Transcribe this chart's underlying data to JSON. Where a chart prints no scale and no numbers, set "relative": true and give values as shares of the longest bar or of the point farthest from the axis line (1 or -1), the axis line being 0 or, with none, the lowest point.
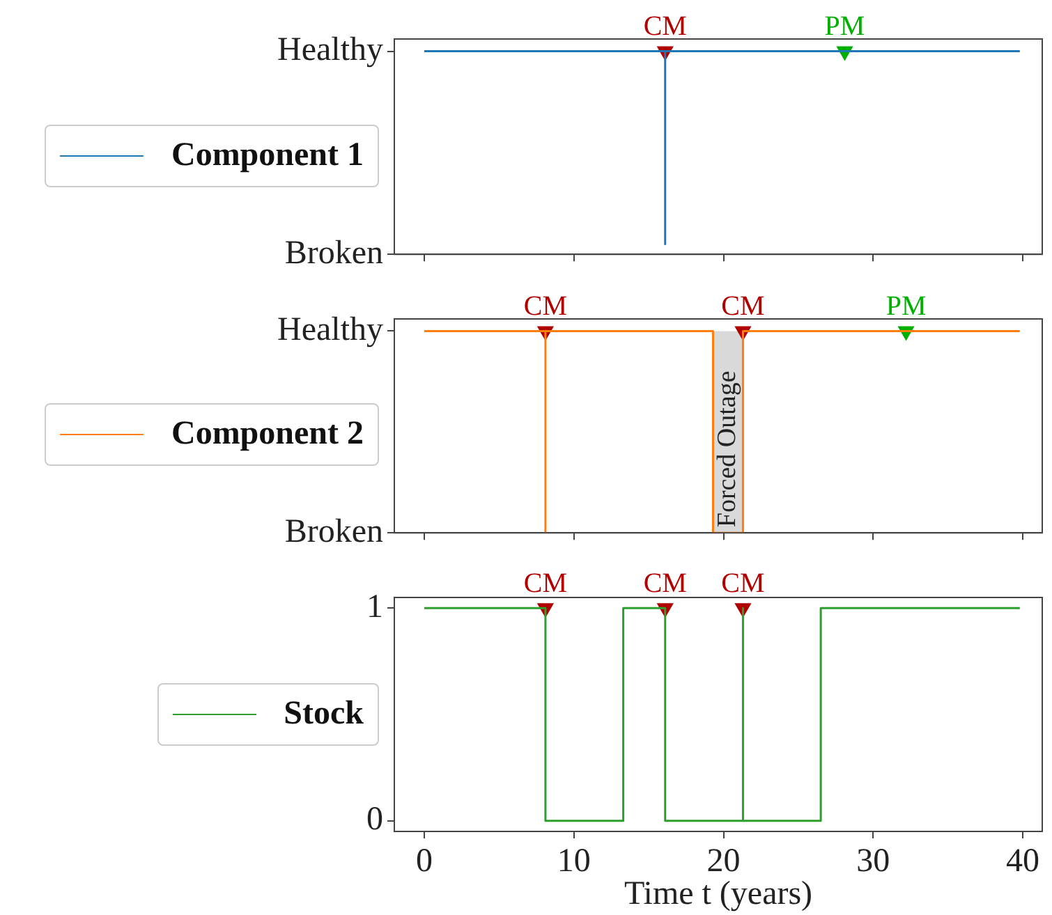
{
  "chart_data": [
    {
      "type": "line",
      "relative": true,
      "y_categories": [
        "Healthy",
        "Broken"
      ],
      "xlim": [
        -2,
        41.3
      ],
      "xticks": [
        0,
        10,
        20,
        30,
        40
      ],
      "tick_labels": "y",
      "legend": "left",
      "series": [
        {
          "name": "Component 1",
          "color": "#1f77b4",
          "x": [
            0,
            16.1,
            16.1,
            16.1,
            39.8
          ],
          "values": [
            1,
            1,
            0.05,
            1,
            1
          ]
        },
        {
          "name": "CM",
          "type": "scatter",
          "marker": "triangle",
          "color": "#b00000",
          "x": [
            16.1
          ],
          "values": [
            1
          ]
        },
        {
          "name": "PM",
          "type": "scatter",
          "marker": "triangle",
          "color": "#00b000",
          "x": [
            28.1
          ],
          "values": [
            1
          ]
        }
      ]
    },
    {
      "type": "line",
      "relative": true,
      "y_categories": [
        "Healthy",
        "Broken"
      ],
      "xlim": [
        -2,
        41.3
      ],
      "xticks": [
        0,
        10,
        20,
        30,
        40
      ],
      "tick_labels": "y",
      "legend": "left",
      "bands": [
        {
          "axis": "x",
          "from": 19.3,
          "to": 21.3,
          "label": "Forced Outage",
          "color": "#d9d9d9"
        }
      ],
      "series": [
        {
          "name": "Component 2",
          "color": "#ff7f0e",
          "x": [
            0,
            8.1,
            8.1,
            8.1,
            19.3,
            19.3,
            21.3,
            21.3,
            39.8
          ],
          "values": [
            1,
            1,
            0,
            1,
            1,
            0,
            0,
            1,
            1
          ]
        },
        {
          "name": "CM",
          "type": "scatter",
          "marker": "triangle",
          "color": "#b00000",
          "x": [
            8.1,
            21.3
          ],
          "values": [
            1,
            1
          ]
        },
        {
          "name": "PM",
          "type": "scatter",
          "marker": "triangle",
          "color": "#00b000",
          "x": [
            32.2
          ],
          "values": [
            1
          ]
        }
      ]
    },
    {
      "type": "line",
      "ylim": [
        -0.05,
        1.05
      ],
      "yticks": [
        0,
        1
      ],
      "xlim": [
        -2,
        41.3
      ],
      "xticks": [
        0,
        10,
        20,
        30,
        40
      ],
      "xlabel": "Time t (years)",
      "legend": "left",
      "series": [
        {
          "name": "Stock",
          "color": "#2ca02c",
          "x": [
            0,
            8.1,
            8.1,
            13.3,
            13.3,
            16.1,
            16.1,
            21.3,
            21.3,
            21.3,
            26.5,
            26.5,
            39.8
          ],
          "values": [
            1,
            1,
            0,
            0,
            1,
            1,
            0,
            0,
            1,
            0,
            0,
            1,
            1
          ]
        },
        {
          "name": "CM",
          "type": "scatter",
          "marker": "triangle",
          "color": "#b00000",
          "x": [
            8.1,
            16.1,
            21.3
          ],
          "values": [
            1,
            1,
            1
          ]
        }
      ]
    }
  ]
}
